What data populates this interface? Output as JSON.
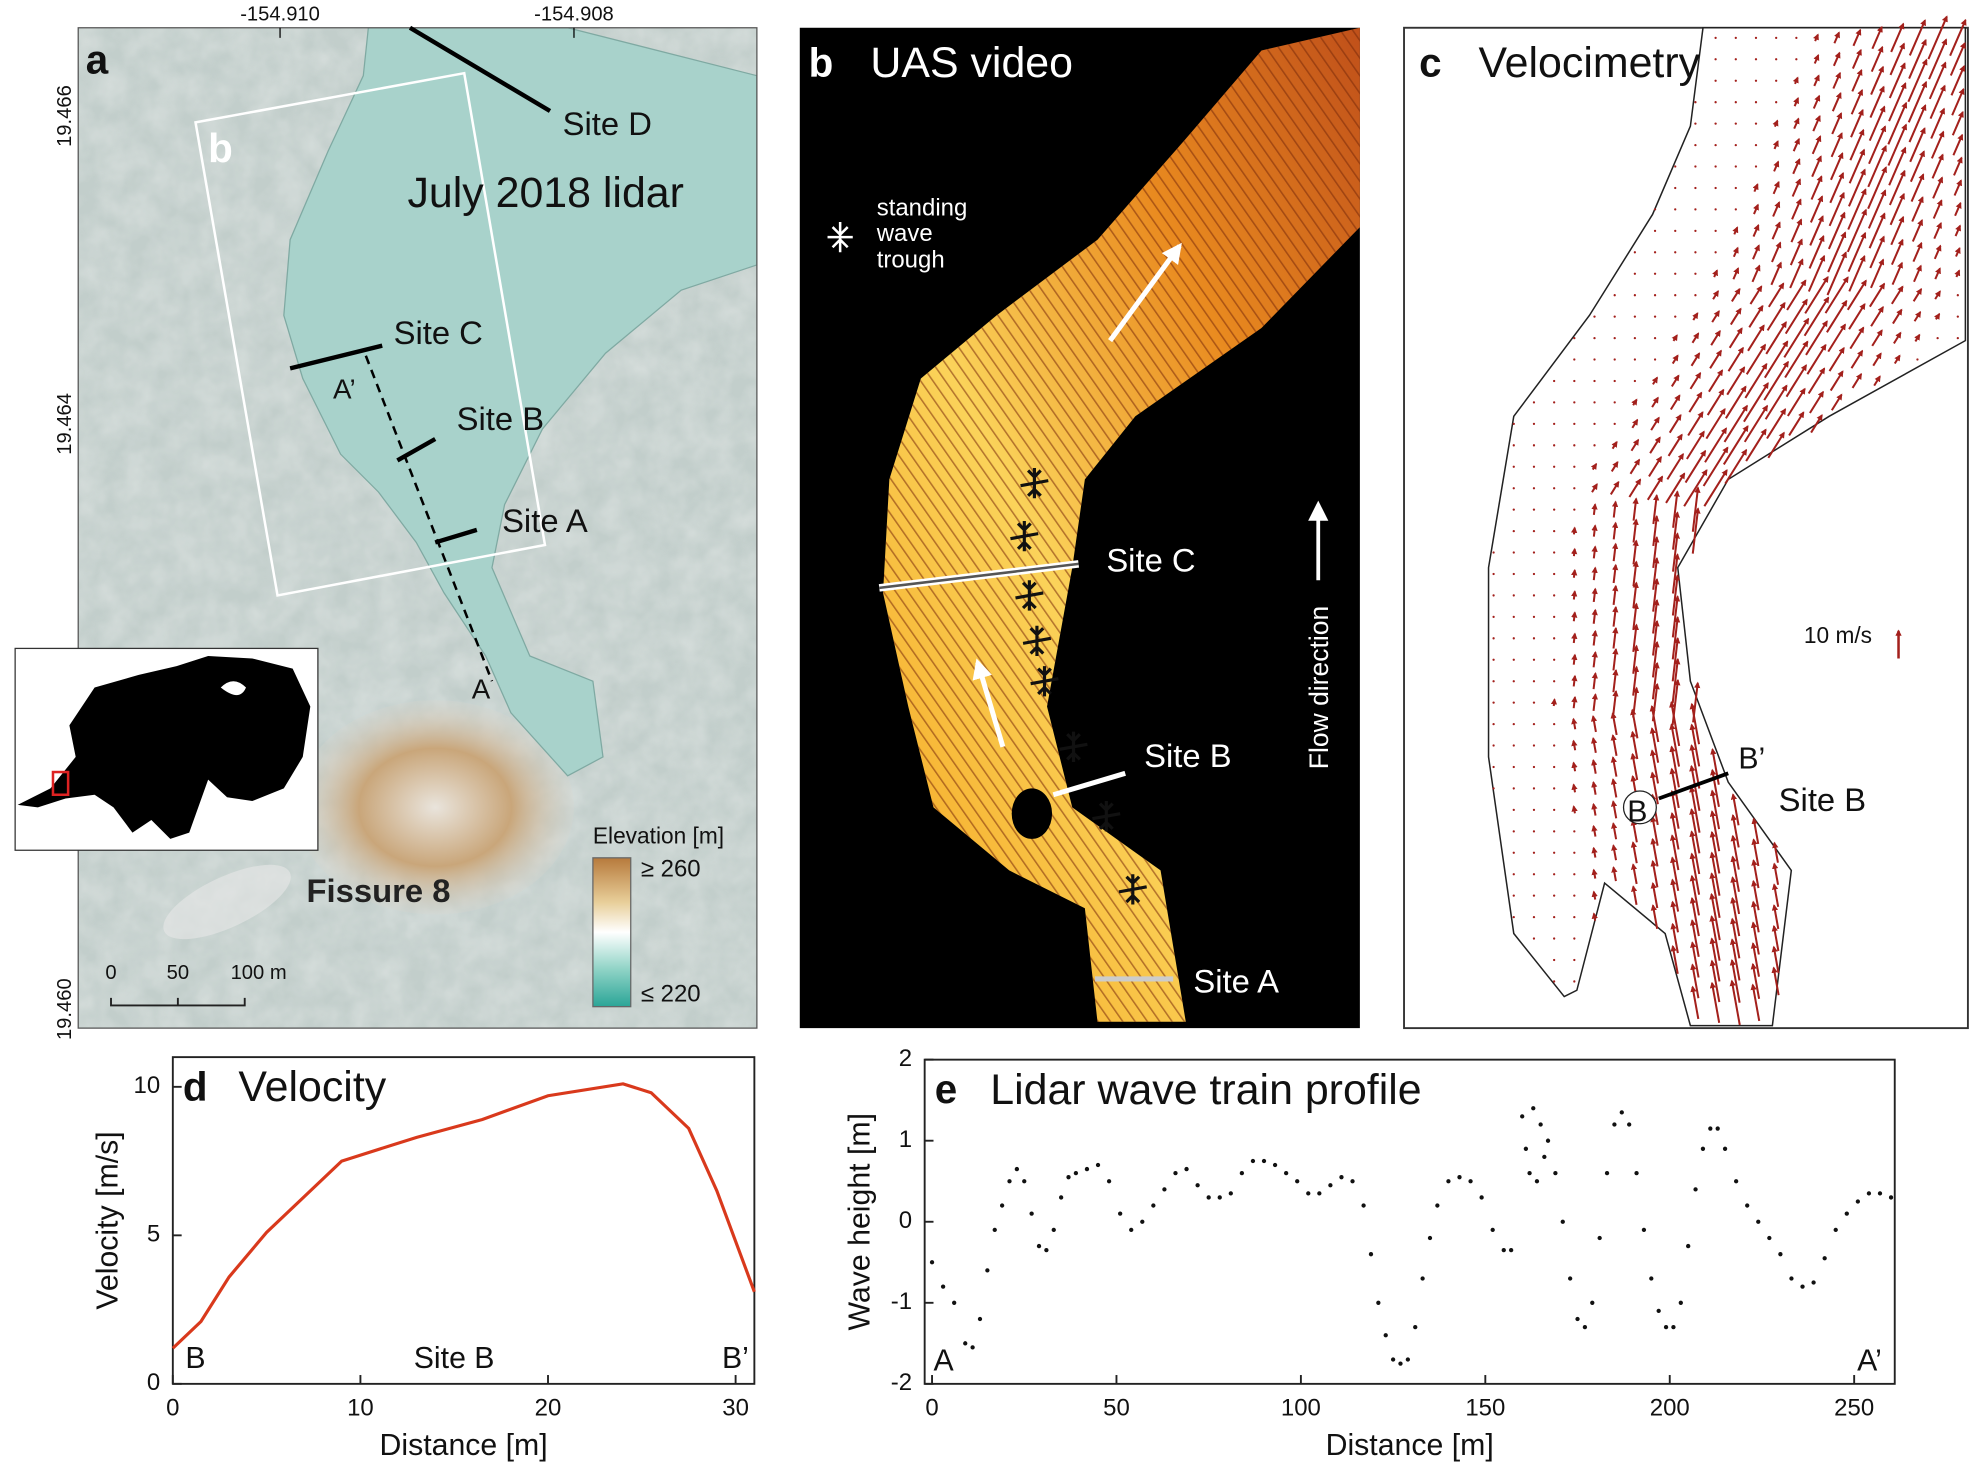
{
  "panel_a": {
    "label": "a",
    "title": "July 2018 lidar",
    "lon_ticks": [
      "-154.910",
      "-154.908"
    ],
    "lat_ticks": [
      "19.466",
      "19.464",
      "19.460"
    ],
    "inset_label": "b",
    "sites": [
      "Site D",
      "Site C",
      "Site B",
      "Site A"
    ],
    "profile_ends": [
      "A’",
      "A"
    ],
    "feature": "Fissure 8",
    "colorbar": {
      "title": "Elevation [m]",
      "max": "≥ 260",
      "min": "≤ 220"
    },
    "scale_bar": [
      "0",
      "50",
      "100 m"
    ]
  },
  "panel_b": {
    "label": "b",
    "title": "UAS video",
    "legend": [
      "standing",
      "wave",
      "trough"
    ],
    "sites": [
      "Site C",
      "Site B",
      "Site A"
    ],
    "flow": "Flow direction"
  },
  "panel_c": {
    "label": "c",
    "title": "Velocimetry",
    "scale": "10 m/s",
    "section_ends": [
      "B’",
      "B"
    ],
    "site": "Site B"
  },
  "chart_data": [
    {
      "type": "line",
      "label": "d",
      "title": "Velocity",
      "x_label": "Distance [m]",
      "y_label": "Velocity [m/s]",
      "xlim": [
        0,
        31
      ],
      "ylim": [
        0,
        11
      ],
      "xticks": [
        0,
        10,
        20,
        30
      ],
      "yticks": [
        0,
        5,
        10
      ],
      "annotations": [
        "B",
        "Site B",
        "B’"
      ],
      "series": [
        {
          "color": "#d9391c",
          "x": [
            0,
            1.5,
            3,
            5,
            7,
            9,
            13,
            16.5,
            20,
            24,
            25.5,
            27.5,
            29,
            30,
            31
          ],
          "values": [
            1.2,
            2.1,
            3.6,
            5.1,
            6.3,
            7.5,
            8.3,
            8.9,
            9.7,
            10.1,
            9.8,
            8.6,
            6.5,
            4.8,
            3.1
          ]
        }
      ]
    },
    {
      "type": "scatter",
      "label": "e",
      "title": "Lidar wave train profile",
      "x_label": "Distance [m]",
      "y_label": "Wave height [m]",
      "xlim": [
        -2,
        261
      ],
      "ylim": [
        -2,
        2
      ],
      "xticks": [
        0,
        50,
        100,
        150,
        200,
        250
      ],
      "yticks": [
        -2,
        -1,
        0,
        1,
        2
      ],
      "annotations": [
        "A",
        "A’"
      ],
      "series": [
        {
          "color": "#111111",
          "x": [
            0,
            3,
            6,
            9,
            11,
            13,
            15,
            17,
            19,
            21,
            23,
            25,
            27,
            29,
            31,
            33,
            35,
            37,
            39,
            42,
            45,
            48,
            51,
            54,
            57,
            60,
            63,
            66,
            69,
            72,
            75,
            78,
            81,
            84,
            87,
            90,
            93,
            96,
            99,
            102,
            105,
            108,
            111,
            114,
            117,
            119,
            121,
            123,
            125,
            127,
            129,
            131,
            133,
            135,
            137,
            140,
            143,
            146,
            149,
            152,
            155,
            157,
            160,
            161,
            162,
            163,
            164,
            165,
            166,
            167,
            169,
            171,
            173,
            175,
            177,
            179,
            181,
            183,
            185,
            187,
            189,
            191,
            193,
            195,
            197,
            199,
            201,
            203,
            205,
            207,
            209,
            211,
            213,
            215,
            218,
            221,
            224,
            227,
            230,
            233,
            236,
            239,
            242,
            245,
            248,
            251,
            254,
            257,
            260
          ],
          "values": [
            -0.5,
            -0.8,
            -1.0,
            -1.5,
            -1.55,
            -1.2,
            -0.6,
            -0.1,
            0.2,
            0.5,
            0.65,
            0.5,
            0.1,
            -0.3,
            -0.35,
            -0.1,
            0.3,
            0.55,
            0.6,
            0.65,
            0.7,
            0.5,
            0.1,
            -0.1,
            0.0,
            0.2,
            0.4,
            0.6,
            0.65,
            0.45,
            0.3,
            0.3,
            0.35,
            0.6,
            0.75,
            0.75,
            0.7,
            0.6,
            0.5,
            0.35,
            0.35,
            0.45,
            0.55,
            0.5,
            0.2,
            -0.4,
            -1.0,
            -1.4,
            -1.7,
            -1.75,
            -1.7,
            -1.3,
            -0.7,
            -0.2,
            0.2,
            0.5,
            0.55,
            0.5,
            0.3,
            -0.1,
            -0.35,
            -0.35,
            1.3,
            0.9,
            0.6,
            1.4,
            0.5,
            1.2,
            0.8,
            1.0,
            0.6,
            0.0,
            -0.7,
            -1.2,
            -1.3,
            -1.0,
            -0.2,
            0.6,
            1.2,
            1.35,
            1.2,
            0.6,
            -0.1,
            -0.7,
            -1.1,
            -1.3,
            -1.3,
            -1.0,
            -0.3,
            0.4,
            0.9,
            1.15,
            1.15,
            0.9,
            0.5,
            0.2,
            0.0,
            -0.2,
            -0.4,
            -0.7,
            -0.8,
            -0.75,
            -0.45,
            -0.1,
            0.1,
            0.25,
            0.35,
            0.35,
            0.3
          ]
        }
      ]
    }
  ]
}
